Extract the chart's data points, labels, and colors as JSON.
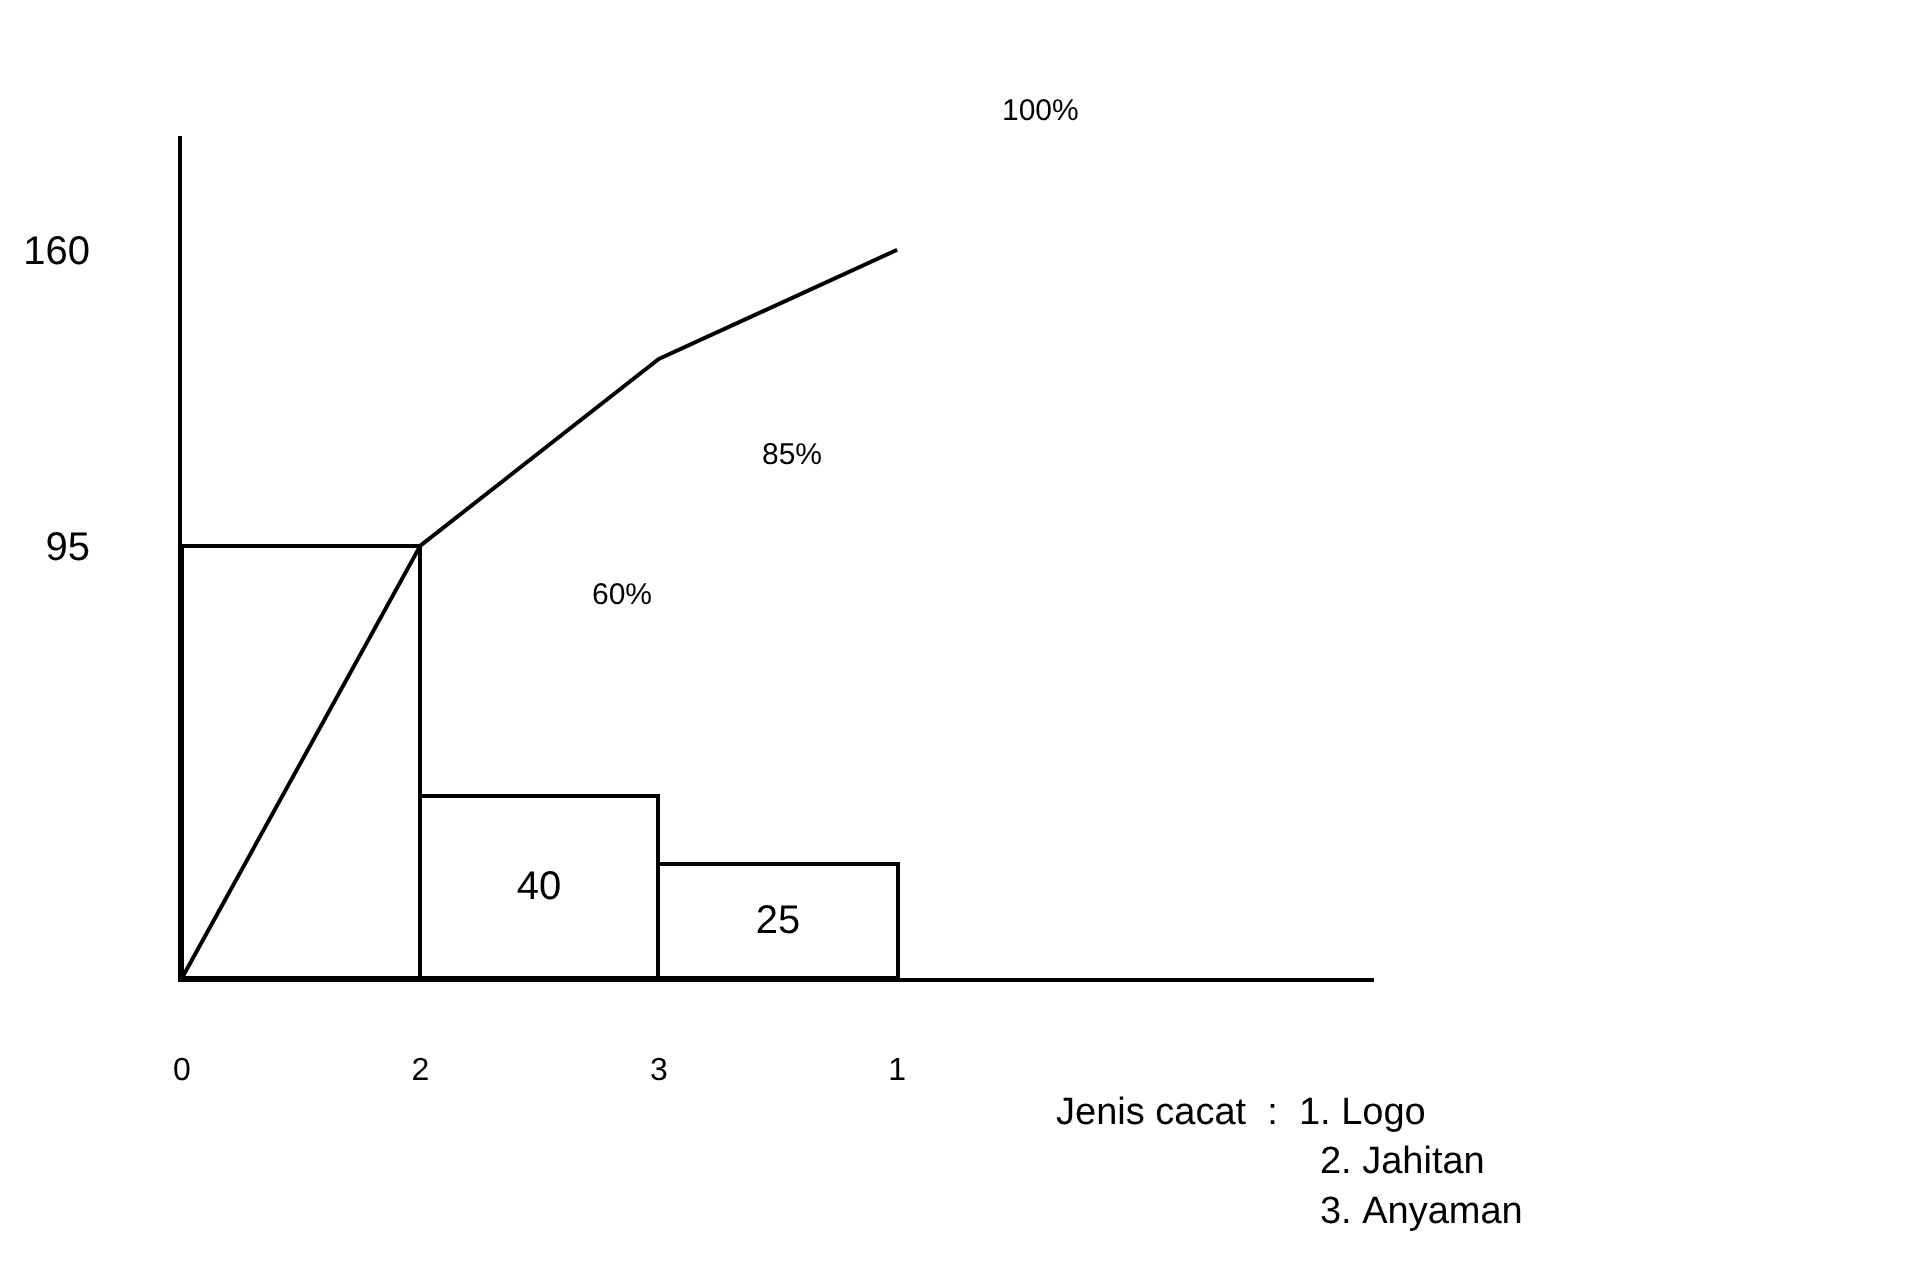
{
  "chart_data": {
    "type": "bar",
    "categories": [
      "0",
      "2",
      "3",
      "1",
      null,
      null
    ],
    "ylim": [
      0,
      185
    ],
    "yticks": [
      95,
      160
    ],
    "series": [
      {
        "values": [
          null,
          95,
          40,
          25,
          null,
          null
        ],
        "value_labels": [
          null,
          null,
          "40",
          "25",
          null,
          null
        ],
        "color": "#ffffff"
      },
      {
        "type": "line",
        "values": [
          0,
          95,
          136,
          160,
          null,
          null
        ],
        "color": "#000000",
        "marker": "none",
        "line_style": "solid"
      }
    ],
    "annotations": [
      "60%",
      "85%",
      "100%",
      "Jenis cacat  :  1. Logo\n                         2. Jahitan\n                         3. Anyaman"
    ]
  }
}
